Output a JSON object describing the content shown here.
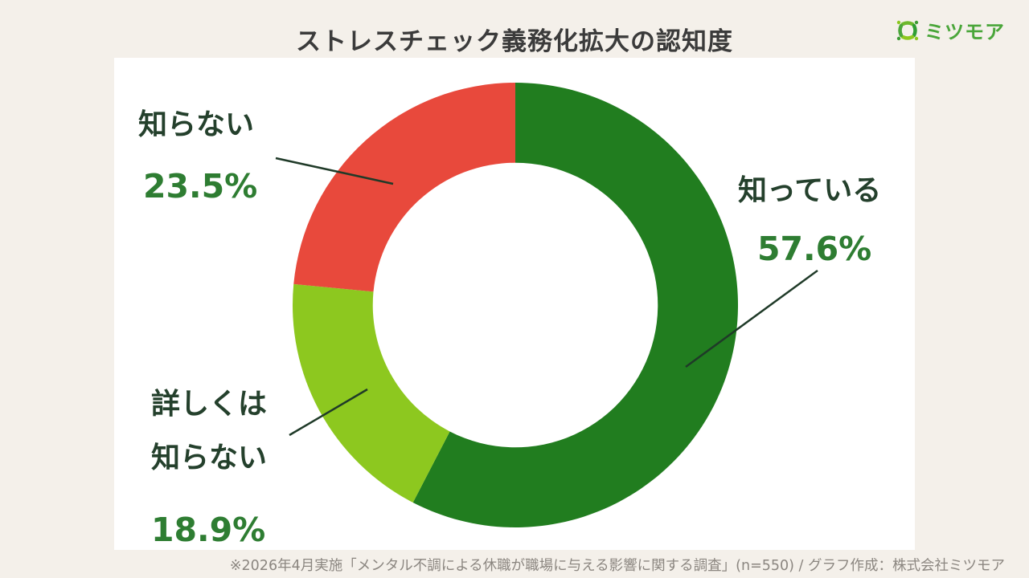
{
  "title": "ストレスチェック義務化拡大の認知度",
  "logo": {
    "text": "ミツモア"
  },
  "footer": "※2026年4月実施「メンタル不調による休職が職場に与える影響に関する調査」(n=550) / グラフ作成：株式会社ミツモア",
  "colors": {
    "background": "#f4f0ea",
    "panel": "#ffffff",
    "title_text": "#3b3b3b",
    "label_text": "#24402c",
    "value_text": "#2e7d32",
    "footer_text": "#8b8680",
    "logo_green": "#4aa63a",
    "leader_line": "#1f3a28"
  },
  "chart_data": {
    "type": "pie",
    "subtype": "donut",
    "title": "ストレスチェック義務化拡大の認知度",
    "categories": [
      "知っている",
      "詳しくは知らない",
      "知らない"
    ],
    "values": [
      57.6,
      18.9,
      23.5
    ],
    "unit": "%",
    "colors": [
      "#217d1f",
      "#8dc81f",
      "#e8493c"
    ],
    "start_angle_deg": 0,
    "direction": "clockwise",
    "inner_radius_ratio": 0.64,
    "legend": "none",
    "source_note": "※2026年4月実施「メンタル不調による休職が職場に与える影響に関する調査」(n=550) / グラフ作成：株式会社ミツモア",
    "sample_size": 550,
    "labels": [
      {
        "text": "知っている",
        "value": "57.6%",
        "position": "right"
      },
      {
        "text": "詳しくは",
        "text2": "知らない",
        "value": "18.9%",
        "position": "bottom-left"
      },
      {
        "text": "知らない",
        "value": "23.5%",
        "position": "top-left"
      }
    ]
  }
}
